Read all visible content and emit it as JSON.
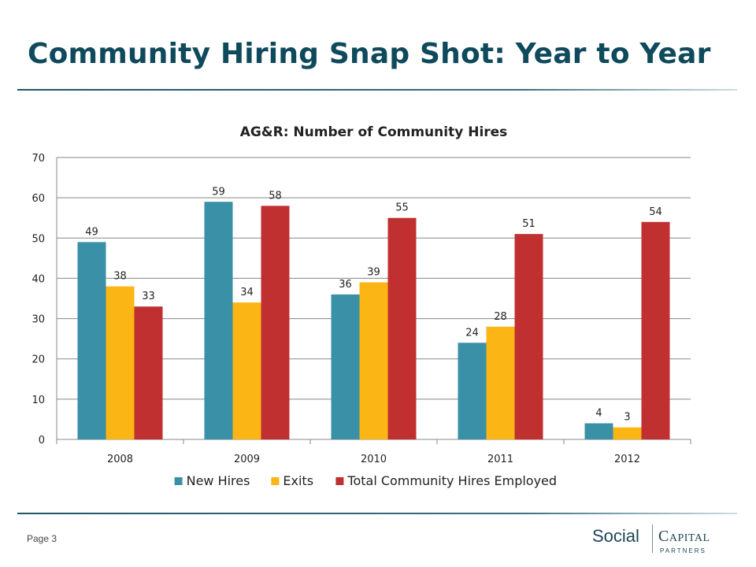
{
  "slide": {
    "title": "Community Hiring Snap Shot: Year to Year",
    "page_label": "Page 3",
    "logo": {
      "word1": "Social",
      "word2": "Capital",
      "word3": "PARTNERS"
    },
    "accent_color": "#0f4a5c"
  },
  "chart_data": {
    "type": "bar",
    "title": "AG&R: Number of Community Hires",
    "categories": [
      "2008",
      "2009",
      "2010",
      "2011",
      "2012"
    ],
    "series": [
      {
        "name": "New Hires",
        "color": "#3a90a6",
        "values": [
          49,
          59,
          36,
          24,
          4
        ]
      },
      {
        "name": "Exits",
        "color": "#fbb515",
        "values": [
          38,
          34,
          39,
          28,
          3
        ]
      },
      {
        "name": "Total Community Hires Employed",
        "color": "#c03030",
        "values": [
          33,
          58,
          55,
          51,
          54
        ]
      }
    ],
    "ylim": [
      0,
      70
    ],
    "yticks": [
      0,
      10,
      20,
      30,
      40,
      50,
      60,
      70
    ],
    "grid": true,
    "legend": "bottom",
    "data_labels": true
  }
}
